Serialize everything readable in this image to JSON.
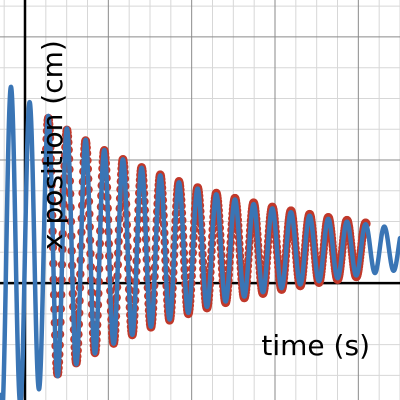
{
  "chart_data": {
    "type": "line",
    "xlabel": "time (s)",
    "ylabel": "x position (cm)",
    "grid": true,
    "xlim": [
      -0.3,
      4.5
    ],
    "ylim": [
      -1.9,
      4.6
    ],
    "series": [
      {
        "kind": "measured-points",
        "color": "#c0392b",
        "t_start": 0.25,
        "t_end": 4.1,
        "amplitude": 2.4,
        "decay": 0.42,
        "period": 0.224,
        "phase": 0.0,
        "offset": 0.55
      },
      {
        "kind": "model-curve",
        "color": "#3a75b5",
        "t_start": -0.3,
        "t_end": 4.5,
        "amplitude": 2.45,
        "decay": 0.44,
        "period": 0.224,
        "phase": 0.0,
        "offset": 0.55
      }
    ]
  }
}
